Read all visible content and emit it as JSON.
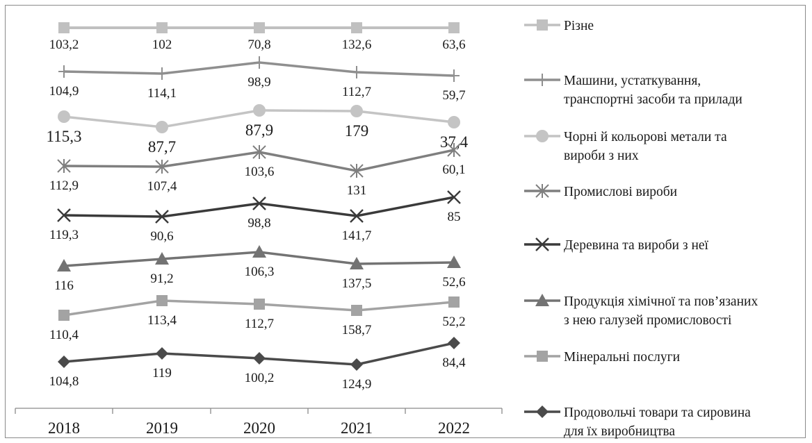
{
  "chart_data": {
    "type": "line",
    "categories": [
      "2018",
      "2019",
      "2020",
      "2021",
      "2022"
    ],
    "legend_position": "right",
    "grid": false,
    "series": [
      {
        "name": "Різне",
        "name_lines": [
          "Різне"
        ],
        "values": [
          103.2,
          102,
          70.8,
          132.6,
          63.6
        ],
        "labels": [
          "103,2",
          "102",
          "70,8",
          "132,6",
          "63,6"
        ],
        "color": "#c0c0c0",
        "marker": "square"
      },
      {
        "name": "Машини, устаткування, транспортні засоби та прилади",
        "name_lines": [
          "Машини,  устаткування,",
          "транспортні засоби та прилади"
        ],
        "values": [
          104.9,
          114.1,
          98.9,
          112.7,
          59.7
        ],
        "labels": [
          "104,9",
          "114,1",
          "98,9",
          "112,7",
          "59,7"
        ],
        "color": "#8f8f8f",
        "marker": "plus"
      },
      {
        "name": "Чорні й кольорові метали та вироби з них",
        "name_lines": [
          "Чорні й кольорові метали та",
          "вироби з них"
        ],
        "values": [
          115.3,
          87.7,
          87.9,
          179,
          37.4
        ],
        "labels": [
          "115,3",
          "87,7",
          "87,9",
          "179",
          "37,4"
        ],
        "color": "#c4c4c4",
        "marker": "circle"
      },
      {
        "name": "Промислові вироби",
        "name_lines": [
          "Промислові вироби"
        ],
        "values": [
          112.9,
          107.4,
          103.6,
          131,
          60.1
        ],
        "labels": [
          "112,9",
          "107,4",
          "103,6",
          "131",
          "60,1"
        ],
        "color": "#7f7f7f",
        "marker": "star"
      },
      {
        "name": "Деревина та вироби з неї",
        "name_lines": [
          "Деревина та вироби з неї"
        ],
        "values": [
          119.3,
          90.6,
          98.8,
          141.7,
          85
        ],
        "labels": [
          "119,3",
          "90,6",
          "98,8",
          "141,7",
          "85"
        ],
        "color": "#3a3a3a",
        "marker": "x"
      },
      {
        "name": "Продукція хімічної та пов’язаних з нею галузей промисловості",
        "name_lines": [
          "Продукція хімічної та пов’язаних",
          "з нею галузей промисловості"
        ],
        "values": [
          116,
          91.2,
          106.3,
          137.5,
          52.6
        ],
        "labels": [
          "116",
          "91,2",
          "106,3",
          "137,5",
          "52,6"
        ],
        "color": "#737373",
        "marker": "triangle"
      },
      {
        "name": "Мінеральні  послуги",
        "name_lines": [
          "Мінеральні  послуги"
        ],
        "values": [
          110.4,
          113.4,
          112.7,
          158.7,
          52.2
        ],
        "labels": [
          "110,4",
          "113,4",
          "112,7",
          "158,7",
          "52,2"
        ],
        "color": "#a3a3a3",
        "marker": "square"
      },
      {
        "name": "Продовольчі товари та сировина для їх виробництва",
        "name_lines": [
          "Продовольчі товари та сировина",
          "для їх виробництва"
        ],
        "values": [
          104.8,
          119,
          100.2,
          124.9,
          84.4
        ],
        "labels": [
          "104,8",
          "119",
          "100,2",
          "124,9",
          "84,4"
        ],
        "color": "#4a4a4a",
        "marker": "diamond"
      }
    ]
  }
}
